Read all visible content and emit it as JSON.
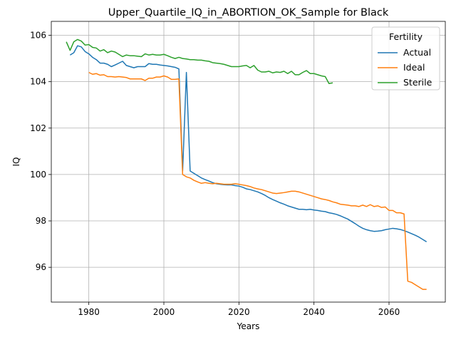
{
  "chart_data": {
    "type": "line",
    "title": "Upper_Quartile_IQ_in_ABORTION_OK_Sample for Black",
    "xlabel": "Years",
    "ylabel": "IQ",
    "xlim": [
      1970,
      2075
    ],
    "ylim": [
      94.5,
      106.6
    ],
    "xticks": [
      1980,
      2000,
      2020,
      2040,
      2060
    ],
    "yticks": [
      96,
      98,
      100,
      102,
      104,
      106
    ],
    "grid": true,
    "legend": {
      "title": "Fertility",
      "placement": "top-right"
    },
    "series": [
      {
        "name": "Actual",
        "color": "#1f77b4",
        "x": [
          1975,
          1976,
          1977,
          1978,
          1979,
          1980,
          1981,
          1982,
          1983,
          1984,
          1985,
          1986,
          1987,
          1988,
          1989,
          1990,
          1991,
          1992,
          1993,
          1994,
          1995,
          1996,
          1997,
          1998,
          1999,
          2000,
          2001,
          2002,
          2003,
          2004,
          2005,
          2006,
          2007,
          2008,
          2009,
          2010,
          2011,
          2012,
          2013,
          2014,
          2015,
          2016,
          2017,
          2018,
          2019,
          2020,
          2021,
          2022,
          2023,
          2024,
          2025,
          2026,
          2027,
          2028,
          2029,
          2030,
          2031,
          2032,
          2033,
          2034,
          2035,
          2036,
          2037,
          2038,
          2039,
          2040,
          2041,
          2042,
          2043,
          2044,
          2045,
          2046,
          2047,
          2048,
          2049,
          2050,
          2051,
          2052,
          2053,
          2054,
          2055,
          2056,
          2057,
          2058,
          2059,
          2060,
          2061,
          2062,
          2063,
          2064,
          2065,
          2066,
          2067,
          2068,
          2069,
          2070
        ],
        "y": [
          105.15,
          105.25,
          105.55,
          105.5,
          105.3,
          105.2,
          105.05,
          104.95,
          104.8,
          104.8,
          104.75,
          104.65,
          104.72,
          104.8,
          104.88,
          104.7,
          104.65,
          104.6,
          104.65,
          104.65,
          104.65,
          104.78,
          104.75,
          104.75,
          104.72,
          104.7,
          104.68,
          104.65,
          104.62,
          104.55,
          100.15,
          104.4,
          100.15,
          100.05,
          99.95,
          99.85,
          99.78,
          99.72,
          99.65,
          99.6,
          99.58,
          99.56,
          99.55,
          99.55,
          99.52,
          99.5,
          99.45,
          99.38,
          99.35,
          99.3,
          99.25,
          99.18,
          99.1,
          99.0,
          98.92,
          98.85,
          98.78,
          98.72,
          98.65,
          98.6,
          98.55,
          98.5,
          98.5,
          98.48,
          98.5,
          98.47,
          98.45,
          98.42,
          98.4,
          98.35,
          98.32,
          98.28,
          98.22,
          98.15,
          98.08,
          97.98,
          97.88,
          97.77,
          97.68,
          97.62,
          97.58,
          97.55,
          97.56,
          97.58,
          97.62,
          97.65,
          97.68,
          97.66,
          97.63,
          97.58,
          97.52,
          97.45,
          97.38,
          97.3,
          97.2,
          97.1
        ]
      },
      {
        "name": "Ideal",
        "color": "#ff7f0e",
        "x": [
          1980,
          1981,
          1982,
          1983,
          1984,
          1985,
          1986,
          1987,
          1988,
          1989,
          1990,
          1991,
          1992,
          1993,
          1994,
          1995,
          1996,
          1997,
          1998,
          1999,
          2000,
          2001,
          2002,
          2003,
          2004,
          2005,
          2006,
          2007,
          2008,
          2009,
          2010,
          2011,
          2012,
          2013,
          2014,
          2015,
          2016,
          2017,
          2018,
          2019,
          2020,
          2021,
          2022,
          2023,
          2024,
          2025,
          2026,
          2027,
          2028,
          2029,
          2030,
          2031,
          2032,
          2033,
          2034,
          2035,
          2036,
          2037,
          2038,
          2039,
          2040,
          2041,
          2042,
          2043,
          2044,
          2045,
          2046,
          2047,
          2048,
          2049,
          2050,
          2051,
          2052,
          2053,
          2054,
          2055,
          2056,
          2057,
          2058,
          2059,
          2060,
          2061,
          2062,
          2063,
          2064,
          2065,
          2066,
          2067,
          2068,
          2069,
          2070
        ],
        "y": [
          104.4,
          104.32,
          104.35,
          104.28,
          104.3,
          104.22,
          104.22,
          104.2,
          104.22,
          104.2,
          104.18,
          104.12,
          104.12,
          104.12,
          104.12,
          104.05,
          104.15,
          104.15,
          104.2,
          104.2,
          104.25,
          104.2,
          104.1,
          104.1,
          104.12,
          100.0,
          99.9,
          99.85,
          99.75,
          99.68,
          99.62,
          99.65,
          99.62,
          99.6,
          99.62,
          99.6,
          99.58,
          99.58,
          99.58,
          99.6,
          99.58,
          99.55,
          99.52,
          99.48,
          99.42,
          99.38,
          99.35,
          99.3,
          99.25,
          99.2,
          99.18,
          99.2,
          99.22,
          99.25,
          99.28,
          99.28,
          99.25,
          99.2,
          99.15,
          99.1,
          99.05,
          99.0,
          98.95,
          98.92,
          98.88,
          98.82,
          98.78,
          98.72,
          98.7,
          98.68,
          98.65,
          98.65,
          98.62,
          98.68,
          98.62,
          98.7,
          98.62,
          98.65,
          98.58,
          98.6,
          98.45,
          98.45,
          98.35,
          98.35,
          98.3,
          95.4,
          95.35,
          95.25,
          95.15,
          95.05,
          95.05
        ]
      },
      {
        "name": "Sterile",
        "color": "#2ca02c",
        "x": [
          1974,
          1975,
          1976,
          1977,
          1978,
          1979,
          1980,
          1981,
          1982,
          1983,
          1984,
          1985,
          1986,
          1987,
          1988,
          1989,
          1990,
          1991,
          1992,
          1993,
          1994,
          1995,
          1996,
          1997,
          1998,
          1999,
          2000,
          2001,
          2002,
          2003,
          2004,
          2005,
          2006,
          2007,
          2008,
          2009,
          2010,
          2011,
          2012,
          2013,
          2014,
          2015,
          2016,
          2017,
          2018,
          2019,
          2020,
          2021,
          2022,
          2023,
          2024,
          2025,
          2026,
          2027,
          2028,
          2029,
          2030,
          2031,
          2032,
          2033,
          2034,
          2035,
          2036,
          2037,
          2038,
          2039,
          2040,
          2041,
          2042,
          2043,
          2044,
          2045
        ],
        "y": [
          105.72,
          105.35,
          105.72,
          105.82,
          105.75,
          105.58,
          105.6,
          105.48,
          105.45,
          105.32,
          105.38,
          105.25,
          105.32,
          105.28,
          105.18,
          105.08,
          105.15,
          105.12,
          105.12,
          105.1,
          105.08,
          105.2,
          105.15,
          105.18,
          105.15,
          105.15,
          105.18,
          105.12,
          105.05,
          105.0,
          105.05,
          105.0,
          104.98,
          104.95,
          104.95,
          104.93,
          104.93,
          104.9,
          104.88,
          104.82,
          104.8,
          104.78,
          104.75,
          104.7,
          104.65,
          104.65,
          104.65,
          104.68,
          104.7,
          104.6,
          104.7,
          104.5,
          104.42,
          104.42,
          104.45,
          104.38,
          104.42,
          104.4,
          104.45,
          104.35,
          104.45,
          104.3,
          104.3,
          104.4,
          104.48,
          104.35,
          104.35,
          104.3,
          104.25,
          104.22,
          103.92,
          103.95
        ]
      }
    ]
  }
}
